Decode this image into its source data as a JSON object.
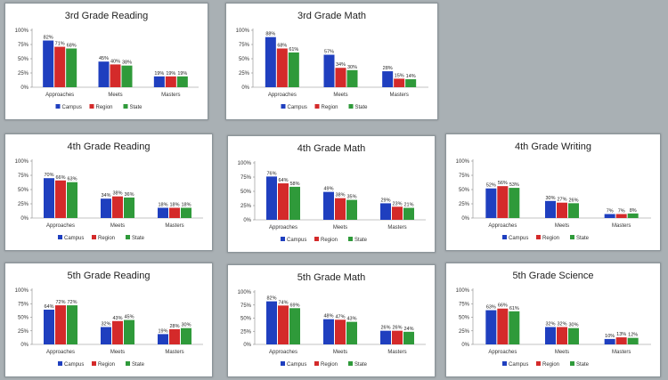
{
  "colors": {
    "Campus": "#1f3fbf",
    "Region": "#d42a2a",
    "State": "#2f9a3a"
  },
  "chart_data": [
    {
      "type": "bar",
      "title": "3rd Grade Reading",
      "categories": [
        "Approaches",
        "Meets",
        "Masters"
      ],
      "ytick_labels": [
        "0%",
        "25%",
        "50%",
        "75%",
        "100%"
      ],
      "ylim": [
        0,
        100
      ],
      "legend_position": "bottom",
      "series": [
        {
          "name": "Campus",
          "values": [
            82,
            45,
            19
          ],
          "labels": [
            "82%",
            "45%",
            "19%"
          ]
        },
        {
          "name": "Region",
          "values": [
            71,
            40,
            19
          ],
          "labels": [
            "71%",
            "40%",
            "19%"
          ]
        },
        {
          "name": "State",
          "values": [
            68,
            38,
            19
          ],
          "labels": [
            "68%",
            "38%",
            "19%"
          ]
        }
      ]
    },
    {
      "type": "bar",
      "title": "3rd Grade Math",
      "categories": [
        "Approaches",
        "Meets",
        "Masters"
      ],
      "ytick_labels": [
        "0%",
        "25%",
        "50%",
        "75%",
        "100%"
      ],
      "ylim": [
        0,
        100
      ],
      "legend_position": "bottom",
      "series": [
        {
          "name": "Campus",
          "values": [
            88,
            57,
            28
          ],
          "labels": [
            "88%",
            "57%",
            "28%"
          ]
        },
        {
          "name": "Region",
          "values": [
            68,
            34,
            15
          ],
          "labels": [
            "68%",
            "34%",
            "15%"
          ]
        },
        {
          "name": "State",
          "values": [
            61,
            30,
            14
          ],
          "labels": [
            "61%",
            "30%",
            "14%"
          ]
        }
      ]
    },
    {
      "type": "bar",
      "title": "4th Grade Reading",
      "categories": [
        "Approaches",
        "Meets",
        "Masters"
      ],
      "ytick_labels": [
        "0%",
        "25%",
        "50%",
        "75%",
        "100%"
      ],
      "ylim": [
        0,
        100
      ],
      "legend_position": "bottom",
      "series": [
        {
          "name": "Campus",
          "values": [
            70,
            34,
            18
          ],
          "labels": [
            "70%",
            "34%",
            "18%"
          ]
        },
        {
          "name": "Region",
          "values": [
            66,
            38,
            18
          ],
          "labels": [
            "66%",
            "38%",
            "18%"
          ]
        },
        {
          "name": "State",
          "values": [
            63,
            36,
            18
          ],
          "labels": [
            "63%",
            "36%",
            "18%"
          ]
        }
      ]
    },
    {
      "type": "bar",
      "title": "4th Grade Math",
      "categories": [
        "Approaches",
        "Meets",
        "Masters"
      ],
      "ytick_labels": [
        "0%",
        "25%",
        "50%",
        "75%",
        "100%"
      ],
      "ylim": [
        0,
        100
      ],
      "legend_position": "bottom",
      "series": [
        {
          "name": "Campus",
          "values": [
            76,
            49,
            29
          ],
          "labels": [
            "76%",
            "49%",
            "29%"
          ]
        },
        {
          "name": "Region",
          "values": [
            64,
            38,
            23
          ],
          "labels": [
            "64%",
            "38%",
            "23%"
          ]
        },
        {
          "name": "State",
          "values": [
            58,
            35,
            21
          ],
          "labels": [
            "58%",
            "35%",
            "21%"
          ]
        }
      ]
    },
    {
      "type": "bar",
      "title": "4th Grade Writing",
      "categories": [
        "Approaches",
        "Meets",
        "Masters"
      ],
      "ytick_labels": [
        "0%",
        "25%",
        "50%",
        "75%",
        "100%"
      ],
      "ylim": [
        0,
        100
      ],
      "legend_position": "bottom",
      "series": [
        {
          "name": "Campus",
          "values": [
            52,
            30,
            7
          ],
          "labels": [
            "52%",
            "30%",
            "7%"
          ]
        },
        {
          "name": "Region",
          "values": [
            56,
            27,
            7
          ],
          "labels": [
            "56%",
            "27%",
            "7%"
          ]
        },
        {
          "name": "State",
          "values": [
            53,
            26,
            8
          ],
          "labels": [
            "53%",
            "26%",
            "8%"
          ]
        }
      ]
    },
    {
      "type": "bar",
      "title": "5th Grade Reading",
      "categories": [
        "Approaches",
        "Meets",
        "Masters"
      ],
      "ytick_labels": [
        "0%",
        "25%",
        "50%",
        "75%",
        "100%"
      ],
      "ylim": [
        0,
        100
      ],
      "legend_position": "bottom",
      "series": [
        {
          "name": "Campus",
          "values": [
            64,
            32,
            19
          ],
          "labels": [
            "64%",
            "32%",
            "19%"
          ]
        },
        {
          "name": "Region",
          "values": [
            72,
            43,
            28
          ],
          "labels": [
            "72%",
            "43%",
            "28%"
          ]
        },
        {
          "name": "State",
          "values": [
            72,
            45,
            30
          ],
          "labels": [
            "72%",
            "45%",
            "30%"
          ]
        }
      ]
    },
    {
      "type": "bar",
      "title": "5th Grade Math",
      "categories": [
        "Approaches",
        "Meets",
        "Masters"
      ],
      "ytick_labels": [
        "0%",
        "25%",
        "50%",
        "75%",
        "100%"
      ],
      "ylim": [
        0,
        100
      ],
      "legend_position": "bottom",
      "series": [
        {
          "name": "Campus",
          "values": [
            82,
            48,
            26
          ],
          "labels": [
            "82%",
            "48%",
            "26%"
          ]
        },
        {
          "name": "Region",
          "values": [
            74,
            47,
            26
          ],
          "labels": [
            "74%",
            "47%",
            "26%"
          ]
        },
        {
          "name": "State",
          "values": [
            69,
            43,
            24
          ],
          "labels": [
            "69%",
            "43%",
            "24%"
          ]
        }
      ]
    },
    {
      "type": "bar",
      "title": "5th Grade Science",
      "categories": [
        "Approaches",
        "Meets",
        "Masters"
      ],
      "ytick_labels": [
        "0%",
        "25%",
        "50%",
        "75%",
        "100%"
      ],
      "ylim": [
        0,
        100
      ],
      "legend_position": "bottom",
      "series": [
        {
          "name": "Campus",
          "values": [
            63,
            32,
            10
          ],
          "labels": [
            "63%",
            "32%",
            "10%"
          ]
        },
        {
          "name": "Region",
          "values": [
            66,
            32,
            13
          ],
          "labels": [
            "66%",
            "32%",
            "13%"
          ]
        },
        {
          "name": "State",
          "values": [
            61,
            30,
            12
          ],
          "labels": [
            "61%",
            "30%",
            "12%"
          ]
        }
      ]
    }
  ]
}
